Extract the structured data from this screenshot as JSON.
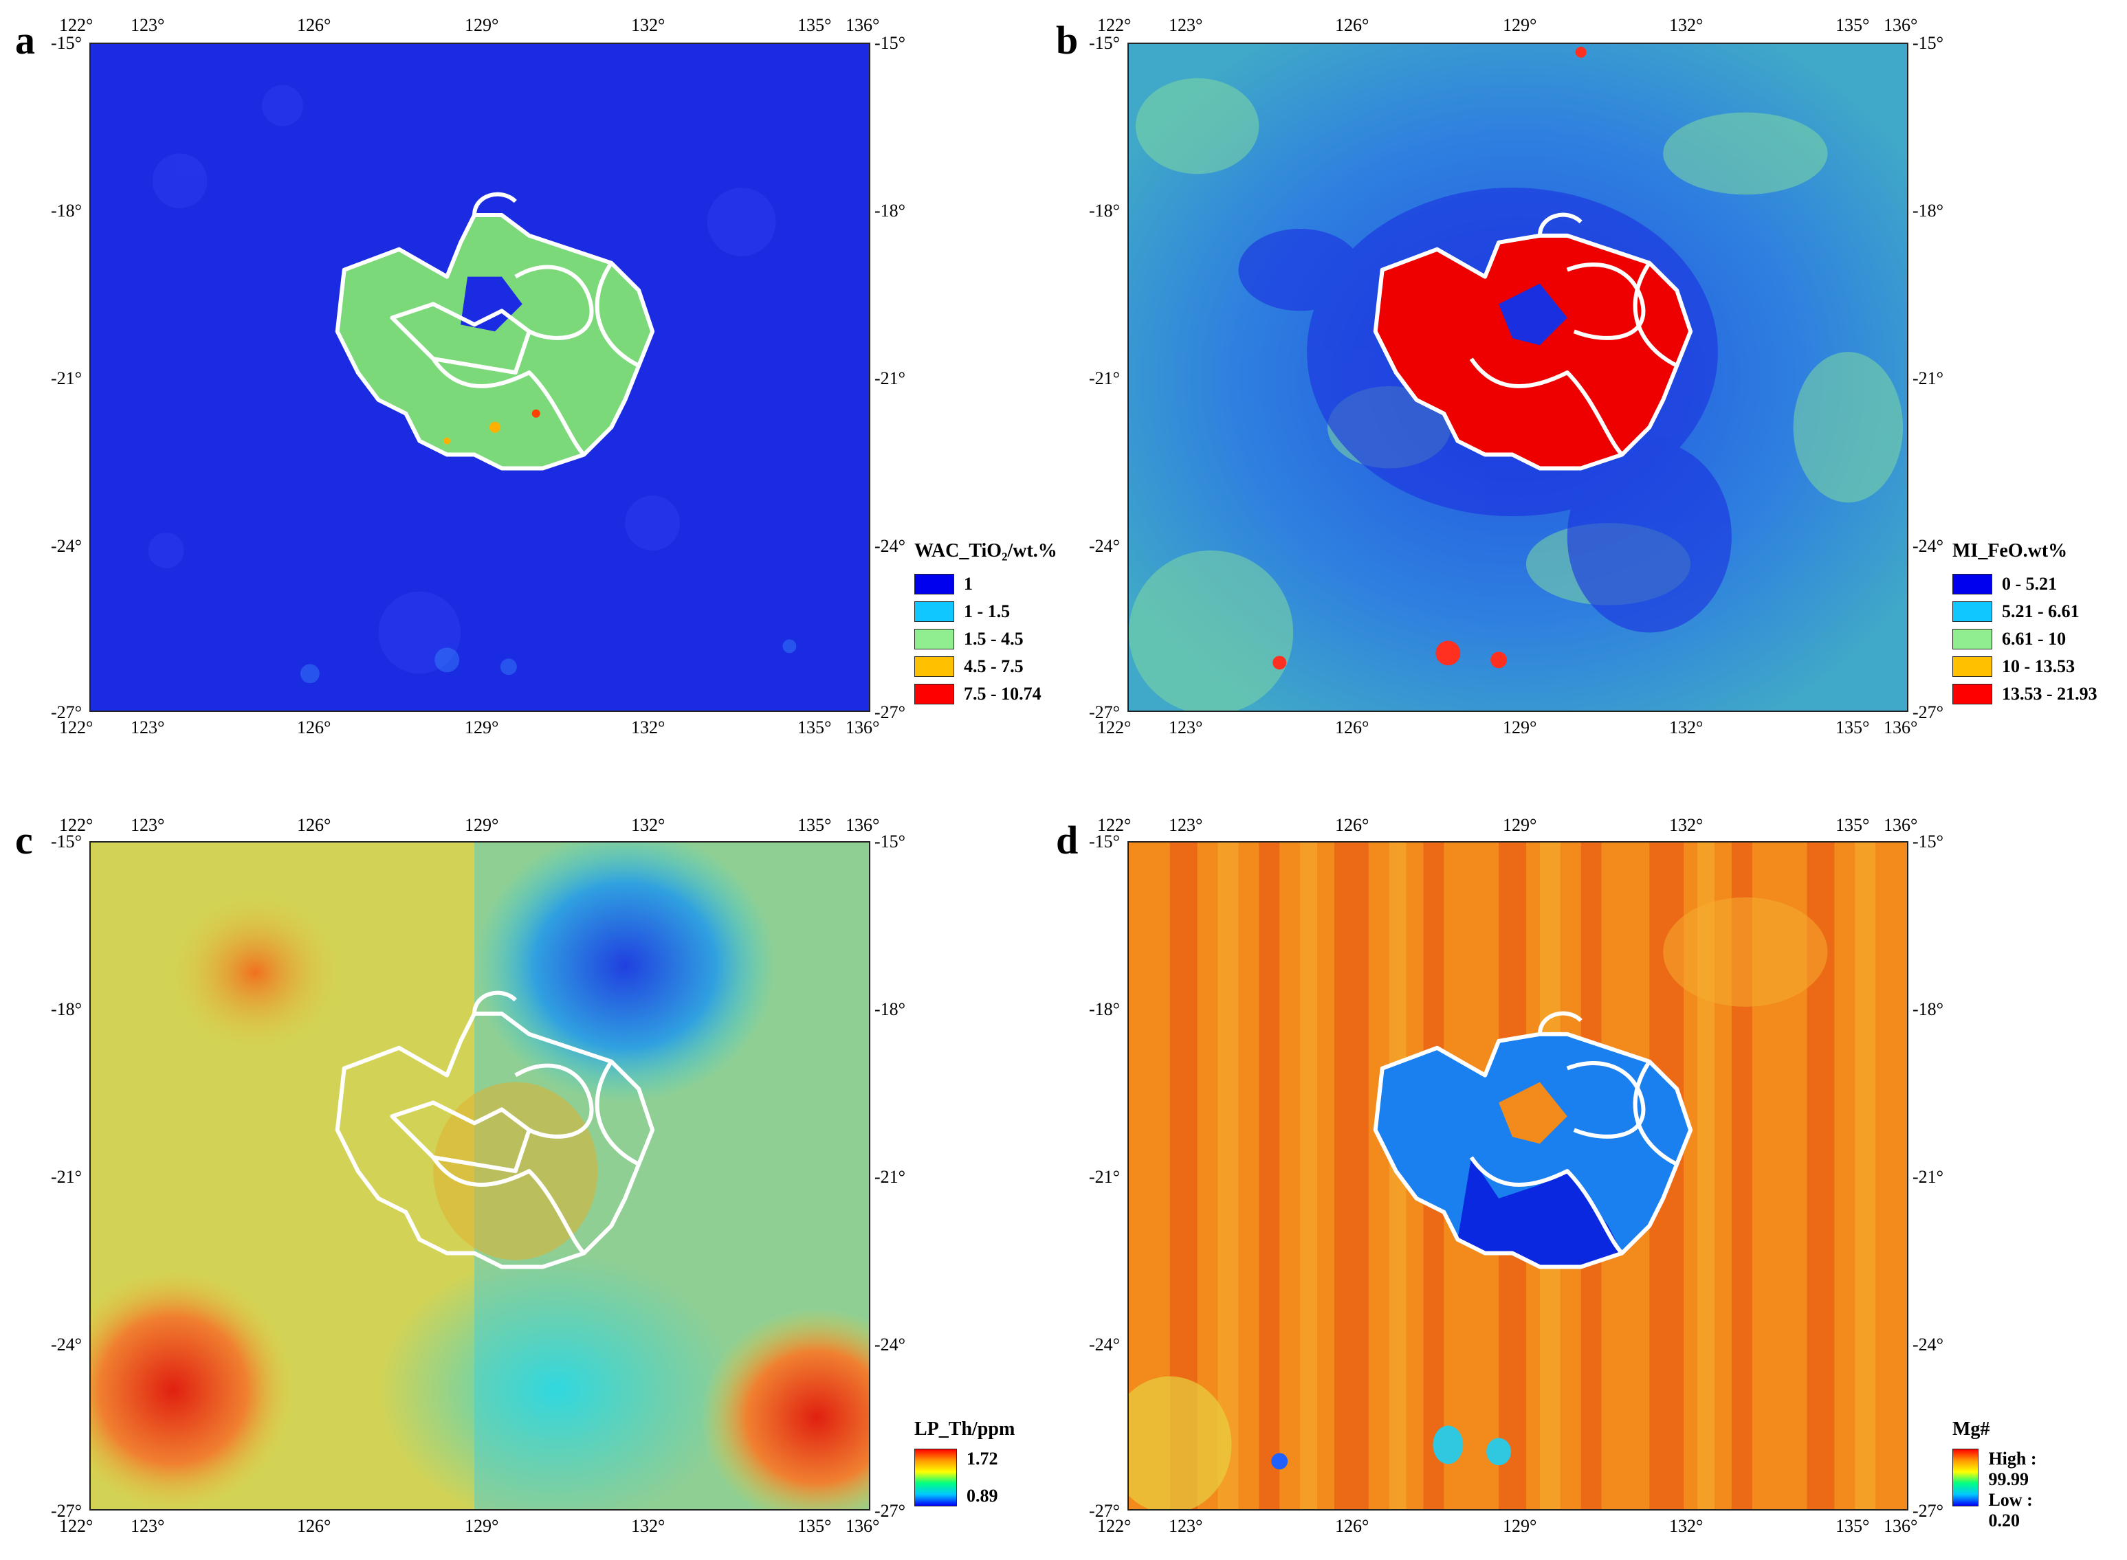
{
  "panels": {
    "a": {
      "label": "a",
      "legend_title": "WAC_TiO₂/wt.%",
      "legend": [
        {
          "label": "1",
          "color": "#0000ee"
        },
        {
          "label": "1 - 1.5",
          "color": "#10c8ff"
        },
        {
          "label": "1.5 - 4.5",
          "color": "#90ee90"
        },
        {
          "label": "4.5 - 7.5",
          "color": "#ffc000"
        },
        {
          "label": "7.5 - 10.74",
          "color": "#ff0000"
        }
      ],
      "background": "#1a2ae0"
    },
    "b": {
      "label": "b",
      "legend_title": "MI_FeO.wt%",
      "legend": [
        {
          "label": "0 - 5.21",
          "color": "#0000ee"
        },
        {
          "label": "5.21 - 6.61",
          "color": "#10c8ff"
        },
        {
          "label": "6.61 - 10",
          "color": "#90ee90"
        },
        {
          "label": "10 - 13.53",
          "color": "#ffc000"
        },
        {
          "label": "13.53 - 21.93",
          "color": "#ff0000"
        }
      ],
      "background": "#3a8fd8"
    },
    "c": {
      "label": "c",
      "legend_title": "LP_Th/ppm",
      "ramp_high": "1.72",
      "ramp_low": "0.89",
      "background": "#b8d870"
    },
    "d": {
      "label": "d",
      "legend_title": "Mg#",
      "ramp_high": "High : 99.99",
      "ramp_low": "Low : 0.20",
      "background": "#f08020"
    }
  },
  "axes": {
    "longitude_ticks": [
      "122°",
      "123°",
      "126°",
      "129°",
      "132°",
      "135°",
      "136°"
    ],
    "latitude_ticks": [
      "-15°",
      "-18°",
      "-21°",
      "-24°",
      "-27°"
    ]
  }
}
